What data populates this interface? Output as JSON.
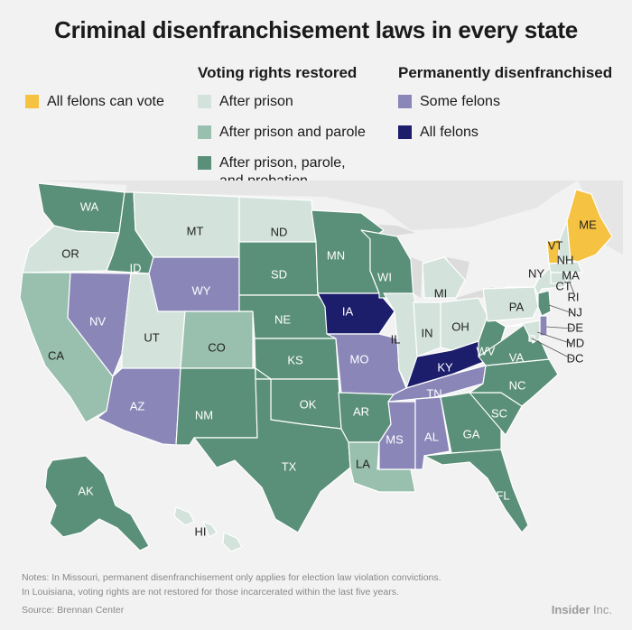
{
  "title": "Criminal disenfranchisement laws in every state",
  "legend": {
    "head_restored": "Voting rights restored",
    "head_permanent": "Permanently disenfranchised",
    "all_vote": "All felons can vote",
    "after_prison": "After prison",
    "after_parole": "After prison and parole",
    "after_probation_1": "After prison, parole,",
    "after_probation_2": "and probation",
    "some_felons": "Some felons",
    "all_felons": "All felons"
  },
  "colors": {
    "all_vote": "#f5c242",
    "after_prison": "#d3e3dc",
    "after_parole": "#99bfae",
    "after_probation": "#5a8f79",
    "some_felons": "#8a86b8",
    "all_felons": "#1c1d6b",
    "background": "#f2f2f2",
    "canada_land": "#e6e6e6",
    "lakes": "#dcdcdc"
  },
  "states": {
    "WA": "after_probation",
    "OR": "after_prison",
    "CA": "after_parole",
    "ID": "after_probation",
    "NV": "some_felons",
    "UT": "after_prison",
    "AZ": "some_felons",
    "MT": "after_prison",
    "WY": "some_felons",
    "CO": "after_parole",
    "NM": "after_probation",
    "ND": "after_prison",
    "SD": "after_probation",
    "NE": "after_probation",
    "KS": "after_probation",
    "OK": "after_probation",
    "TX": "after_probation",
    "MN": "after_probation",
    "IA": "all_felons",
    "MO": "some_felons",
    "AR": "after_probation",
    "LA": "after_parole",
    "WI": "after_probation",
    "IL": "after_prison",
    "MI": "after_prison",
    "IN": "after_prison",
    "OH": "after_prison",
    "KY": "all_felons",
    "TN": "some_felons",
    "MS": "some_felons",
    "AL": "some_felons",
    "GA": "after_probation",
    "FL": "after_probation",
    "SC": "after_probation",
    "NC": "after_probation",
    "VA": "after_probation",
    "WV": "after_probation",
    "PA": "after_prison",
    "NY": "after_prison",
    "VT": "all_vote",
    "NH": "after_prison",
    "ME": "all_vote",
    "MA": "after_prison",
    "CT": "after_prison",
    "RI": "after_prison",
    "NJ": "after_probation",
    "DE": "some_felons",
    "MD": "after_prison",
    "DC": "after_prison",
    "AK": "after_probation",
    "HI": "after_prison"
  },
  "map_labels": {
    "WA": "WA",
    "OR": "OR",
    "CA": "CA",
    "ID": "ID",
    "NV": "NV",
    "UT": "UT",
    "AZ": "AZ",
    "MT": "MT",
    "WY": "WY",
    "CO": "CO",
    "NM": "NM",
    "ND": "ND",
    "SD": "SD",
    "NE": "NE",
    "KS": "KS",
    "OK": "OK",
    "TX": "TX",
    "MN": "MN",
    "IA": "IA",
    "MO": "MO",
    "AR": "AR",
    "LA": "LA",
    "WI": "WI",
    "IL": "IL",
    "MI": "MI",
    "IN": "IN",
    "OH": "OH",
    "KY": "KY",
    "TN": "TN",
    "MS": "MS",
    "AL": "AL",
    "GA": "GA",
    "FL": "FL",
    "SC": "SC",
    "NC": "NC",
    "VA": "VA",
    "WV": "WV",
    "PA": "PA",
    "NY": "NY",
    "VT": "VT",
    "NH": "NH",
    "ME": "ME",
    "MA": "MA",
    "CT": "CT",
    "RI": "RI",
    "NJ": "NJ",
    "DE": "DE",
    "MD": "MD",
    "DC": "DC",
    "AK": "AK",
    "HI": "HI"
  },
  "notes": {
    "line1": "Notes: In Missouri, permanent disenfranchisement only applies for election law violation convictions.",
    "line2": "In Louisiana, voting rights are not restored for those incarcerated within the last five years."
  },
  "source": "Source: Brennan Center",
  "brand": {
    "name": "Insider",
    "suffix": " Inc."
  }
}
